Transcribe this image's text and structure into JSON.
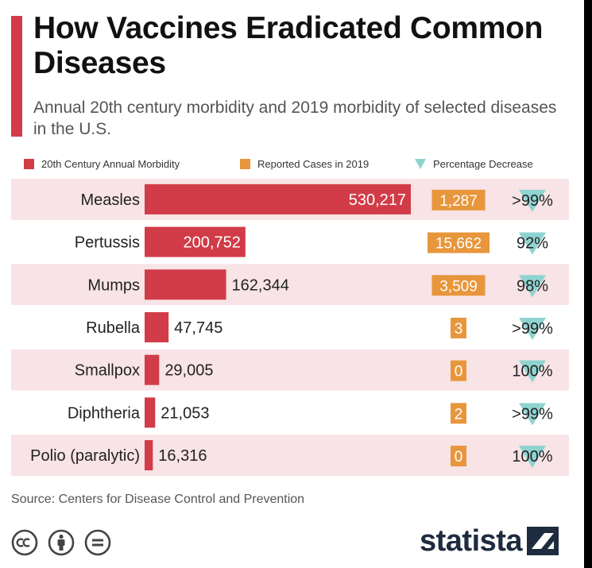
{
  "title": "How Vaccines Eradicated Common Diseases",
  "subtitle": "Annual 20th century morbidity and 2019 morbidity of selected diseases in the U.S.",
  "source": "Source: Centers for Disease Control and Prevention",
  "brand": "statista",
  "icons": {
    "license": [
      "creative-commons-icon",
      "attribution-icon",
      "no-derivatives-icon"
    ],
    "logo": "statista-logo-icon"
  },
  "colors": {
    "morbidity": "#d13c48",
    "cases": "#e8963c",
    "decrease": "#8fd3d0",
    "row_band": "#f8e3e6",
    "accent": "#d13c48"
  },
  "chart_data": {
    "type": "table",
    "title": "How Vaccines Eradicated Common Diseases",
    "subtitle": "Annual 20th century morbidity and 2019 morbidity of selected diseases in the U.S.",
    "legend_placement": "top",
    "categories": [
      "Measles",
      "Pertussis",
      "Mumps",
      "Rubella",
      "Smallpox",
      "Diphtheria",
      "Polio (paralytic)"
    ],
    "series": [
      {
        "name": "20th Century Annual Morbidity",
        "type": "bar",
        "values": [
          530217,
          200752,
          162344,
          47745,
          29005,
          21053,
          16316
        ],
        "labels": [
          "530,217",
          "200,752",
          "162,344",
          "47,745",
          "29,005",
          "21,053",
          "16,316"
        ]
      },
      {
        "name": "Reported Cases in 2019",
        "type": "label",
        "values": [
          1287,
          15662,
          3509,
          3,
          0,
          2,
          0
        ],
        "labels": [
          "1,287",
          "15,662",
          "3,509",
          "3",
          "0",
          "2",
          "0"
        ]
      },
      {
        "name": "Percentage Decrease",
        "type": "label",
        "labels": [
          ">99%",
          "92%",
          "98%",
          ">99%",
          "100%",
          ">99%",
          "100%"
        ]
      }
    ],
    "xlim": [
      0,
      530217
    ]
  }
}
